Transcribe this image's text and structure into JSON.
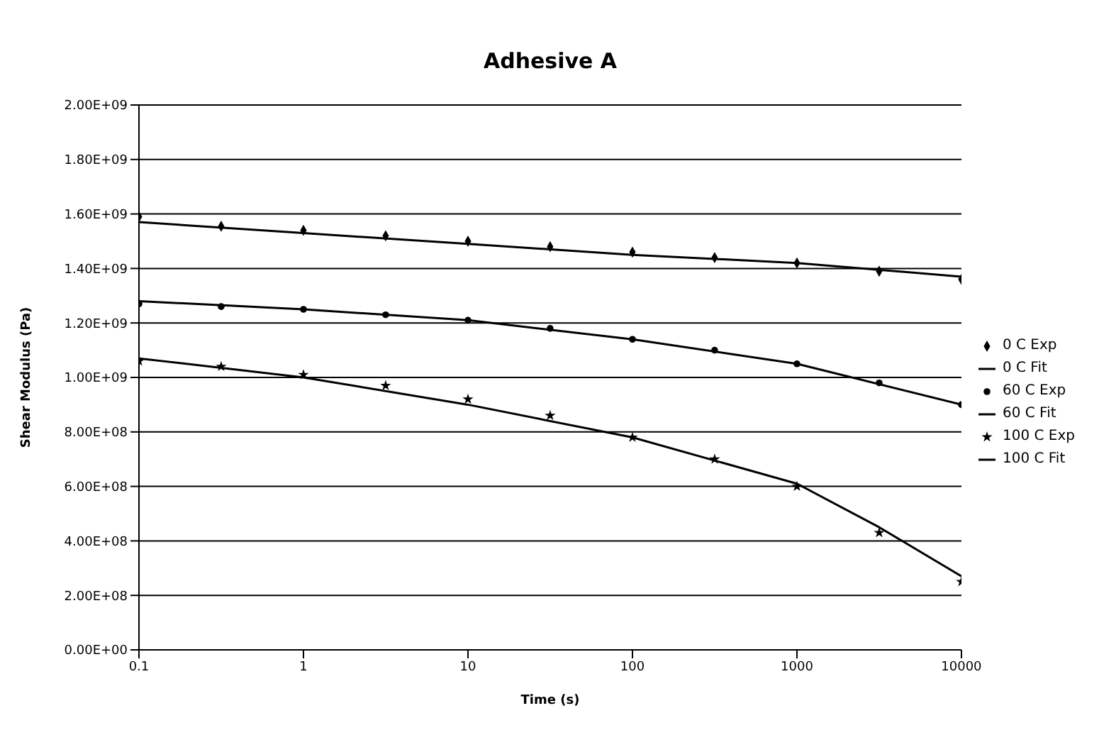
{
  "chart_data": {
    "type": "line",
    "title": "Adhesive A",
    "xlabel": "Time (s)",
    "ylabel": "Shear Modulus (Pa)",
    "log": "x",
    "grid": "y",
    "legend": "right",
    "xlim": [
      0.1,
      10000
    ],
    "xticks": [
      0.1,
      1,
      10,
      100,
      1000,
      10000
    ],
    "ylim": [
      0,
      2000000000
    ],
    "yticks": [
      {
        "value": 0,
        "label": "0.00E+00"
      },
      {
        "value": 200000000,
        "label": "2.00E+08"
      },
      {
        "value": 400000000,
        "label": "4.00E+08"
      },
      {
        "value": 600000000,
        "label": "6.00E+08"
      },
      {
        "value": 800000000,
        "label": "8.00E+08"
      },
      {
        "value": 1000000000,
        "label": "1.00E+09"
      },
      {
        "value": 1200000000,
        "label": "1.20E+09"
      },
      {
        "value": 1400000000,
        "label": "1.40E+09"
      },
      {
        "value": 1600000000,
        "label": "1.60E+09"
      },
      {
        "value": 1800000000,
        "label": "1.80E+09"
      },
      {
        "value": 2000000000,
        "label": "2.00E+09"
      }
    ],
    "series": [
      {
        "name": "0 C Exp",
        "type": "scatter",
        "marker": "diamond",
        "color": "#000000",
        "x": [
          0.1,
          0.316,
          1,
          3.16,
          10,
          31.6,
          100,
          316,
          1000,
          3162,
          10000
        ],
        "values": [
          1590000000,
          1555000000,
          1540000000,
          1520000000,
          1500000000,
          1480000000,
          1460000000,
          1440000000,
          1420000000,
          1390000000,
          1360000000
        ]
      },
      {
        "name": "0 C Fit",
        "marker": "none",
        "color": "#000000",
        "x": [
          0.1,
          1,
          10,
          100,
          1000,
          10000
        ],
        "values": [
          1570000000,
          1530000000,
          1490000000,
          1450000000,
          1420000000,
          1370000000
        ]
      },
      {
        "name": "60 C Exp",
        "type": "scatter",
        "marker": "circle",
        "color": "#000000",
        "x": [
          0.1,
          0.316,
          1,
          3.16,
          10,
          31.6,
          100,
          316,
          1000,
          3162,
          10000
        ],
        "values": [
          1270000000,
          1260000000,
          1250000000,
          1230000000,
          1210000000,
          1180000000,
          1140000000,
          1100000000,
          1050000000,
          980000000,
          900000000
        ]
      },
      {
        "name": "60 C Fit",
        "marker": "none",
        "color": "#000000",
        "x": [
          0.1,
          1,
          10,
          100,
          1000,
          10000
        ],
        "values": [
          1280000000,
          1250000000,
          1210000000,
          1140000000,
          1050000000,
          900000000
        ]
      },
      {
        "name": "100 C Exp",
        "type": "scatter",
        "marker": "star",
        "color": "#000000",
        "x": [
          0.1,
          0.316,
          1,
          3.16,
          10,
          31.6,
          100,
          316,
          1000,
          3162,
          10000
        ],
        "values": [
          1060000000,
          1040000000,
          1010000000,
          970000000,
          920000000,
          860000000,
          780000000,
          700000000,
          600000000,
          430000000,
          250000000
        ]
      },
      {
        "name": "100 C Fit",
        "marker": "none",
        "color": "#000000",
        "x": [
          0.1,
          1,
          10,
          100,
          1000,
          3162,
          10000
        ],
        "values": [
          1070000000,
          1000000000,
          900000000,
          780000000,
          610000000,
          450000000,
          270000000
        ]
      }
    ]
  }
}
